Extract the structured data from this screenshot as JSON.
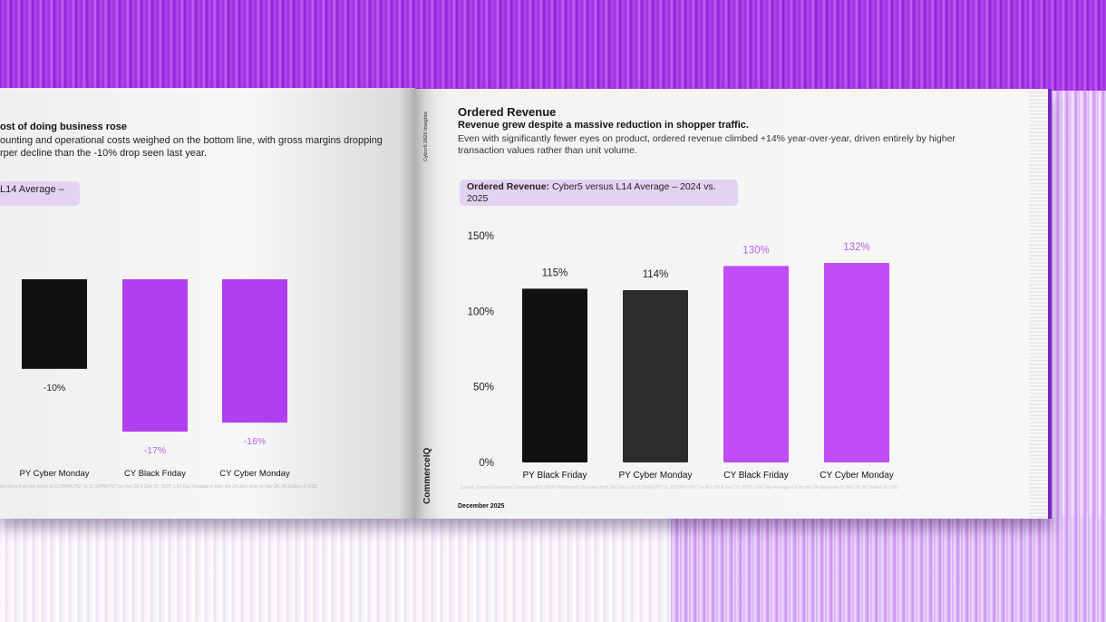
{
  "left_page": {
    "title": "ost of doing business rose",
    "body": "ounting and operational costs weighed on the bottom line, with gross margins dropping rper decline than the -10% drop seen last year.",
    "pill_label": "L14 Average –",
    "footnote": "for users from the hours of 12:00AM PST to 11:59PM PST on Nov 28 & Dec 01, 2025. L14 Day Average is from the 14 days prior to Nov 28. All Dollars in USD."
  },
  "right_page": {
    "side_label": "Cyber5 2025 Insights",
    "brand": "CommerceIQ",
    "title": "Ordered Revenue",
    "subtitle": "Revenue grew despite a massive reduction in shopper traffic.",
    "body": "Even with significantly fewer eyes on product, ordered revenue climbed +14% year-over-year, driven entirely by higher transaction values rather than unit volume.",
    "pill_bold": "Ordered Revenue:",
    "pill_rest": " Cyber5 versus L14 Average – 2024 vs. 2025",
    "footnote": "Source: Internal data from CommerceIQ's RMM Platform for its users from the hours of 12:00AM PST to 11:59PM PST on Nov 28 & Dec 01, 2025. L14 Day Average is from the 14 days prior to Nov 28. All Dollars in USD.",
    "date": "December 2025"
  },
  "colors": {
    "py_bar": "#111111",
    "py_bar_2": "#2c2c2c",
    "cy_bar": "#b13ff0",
    "cy_bar_right": "#c04cf6",
    "cy_label": "#b55fe6"
  },
  "chart_data": [
    {
      "type": "bar",
      "title": "",
      "categories": [
        "PY Black Friday",
        "PY Cyber Monday",
        "CY Black Friday",
        "CY Cyber Monday"
      ],
      "values": [
        115,
        114,
        130,
        132
      ],
      "value_labels": [
        "115%",
        "114%",
        "130%",
        "132%"
      ],
      "yticks": [
        "0%",
        "50%",
        "100%",
        "150%"
      ],
      "ylim": [
        0,
        150
      ],
      "grid": false
    },
    {
      "type": "bar",
      "title": "",
      "categories": [
        "PY Cyber Monday",
        "CY Black Friday",
        "CY Cyber Monday"
      ],
      "values": [
        -10,
        -17,
        -16
      ],
      "value_labels": [
        "-10%",
        "-17%",
        "-16%"
      ],
      "grid": false
    }
  ]
}
